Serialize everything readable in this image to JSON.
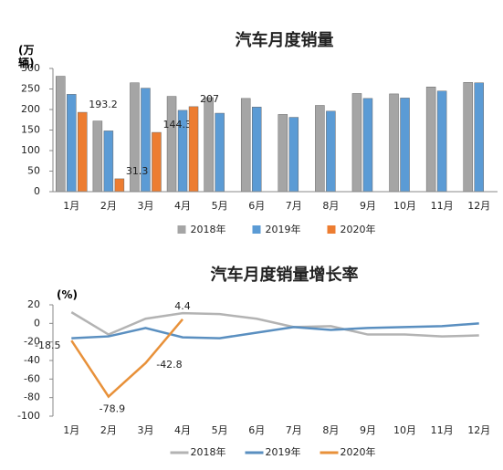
{
  "chart_data": [
    {
      "type": "bar",
      "title": "汽车月度销量",
      "ylabel": "(万辆)",
      "categories": [
        "1月",
        "2月",
        "3月",
        "4月",
        "5月",
        "6月",
        "7月",
        "8月",
        "9月",
        "10月",
        "11月",
        "12月"
      ],
      "series": [
        {
          "name": "2018年",
          "color": "#a5a5a5",
          "values": [
            281,
            172,
            265,
            232,
            229,
            227,
            188,
            210,
            239,
            238,
            255,
            266
          ]
        },
        {
          "name": "2019年",
          "color": "#5b9bd5",
          "values": [
            237,
            148,
            252,
            198,
            191,
            206,
            181,
            196,
            227,
            228,
            245,
            265
          ]
        },
        {
          "name": "2020年",
          "color": "#ed7d31",
          "values": [
            193.2,
            31.3,
            144.3,
            207,
            null,
            null,
            null,
            null,
            null,
            null,
            null,
            null
          ]
        }
      ],
      "ylim": [
        0,
        300
      ],
      "yticks": [
        0,
        50,
        100,
        150,
        200,
        250,
        300
      ],
      "grid": false
    },
    {
      "type": "line",
      "title": "汽车月度销量增长率",
      "ylabel": "(%)",
      "categories": [
        "1月",
        "2月",
        "3月",
        "4月",
        "5月",
        "6月",
        "7月",
        "8月",
        "9月",
        "10月",
        "11月",
        "12月"
      ],
      "series": [
        {
          "name": "2018年",
          "color": "#b3b3b3",
          "values": [
            12,
            -12,
            5,
            11,
            10,
            5,
            -4,
            -3,
            -12,
            -12,
            -14,
            -13
          ]
        },
        {
          "name": "2019年",
          "color": "#5a8fc0",
          "values": [
            -16,
            -14,
            -5,
            -15,
            -16,
            -10,
            -4,
            -7,
            -5,
            -4,
            -3,
            0
          ]
        },
        {
          "name": "2020年",
          "color": "#e8913a",
          "values": [
            -18.5,
            -78.9,
            -42.8,
            4.4,
            null,
            null,
            null,
            null,
            null,
            null,
            null,
            null
          ]
        }
      ],
      "ylim": [
        -100,
        20
      ],
      "yticks": [
        -100,
        -80,
        -60,
        -40,
        -20,
        0,
        20
      ],
      "grid": false
    }
  ]
}
